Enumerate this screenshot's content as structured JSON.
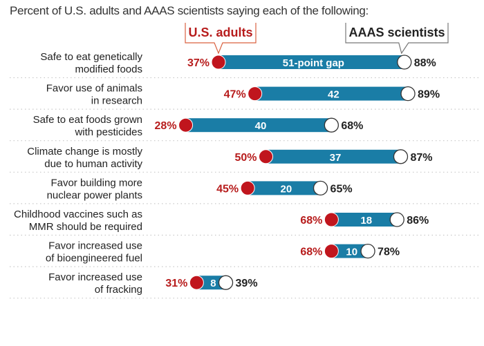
{
  "chart_data": {
    "type": "dumbbell",
    "title": "Percent of U.S. adults and AAAS scientists saying each of the following:",
    "xlim": [
      0,
      100
    ],
    "unit": "%",
    "series": [
      {
        "name": "U.S. adults",
        "color": "#c0151d",
        "label_color": "#b71c1c"
      },
      {
        "name": "AAAS scientists",
        "color": "#ffffff",
        "label_color": "#222222"
      }
    ],
    "bar_color": "#1a7da6",
    "categories": [
      [
        "Safe to eat genetically",
        "modified foods"
      ],
      [
        "Favor use of animals",
        "in research"
      ],
      [
        "Safe to eat foods grown",
        "with pesticides"
      ],
      [
        "Climate change is mostly",
        "due to human activity"
      ],
      [
        "Favor building more",
        "nuclear power plants"
      ],
      [
        "Childhood vaccines such as",
        "MMR should be required"
      ],
      [
        "Favor increased use",
        "of bioengineered fuel"
      ],
      [
        "Favor increased use",
        "of fracking"
      ]
    ],
    "us_adults": [
      37,
      47,
      28,
      50,
      45,
      68,
      68,
      31
    ],
    "scientists": [
      88,
      89,
      68,
      87,
      65,
      86,
      78,
      39
    ],
    "gap_labels": [
      "51-point gap",
      "42",
      "40",
      "37",
      "20",
      "18",
      "10",
      "8"
    ]
  }
}
